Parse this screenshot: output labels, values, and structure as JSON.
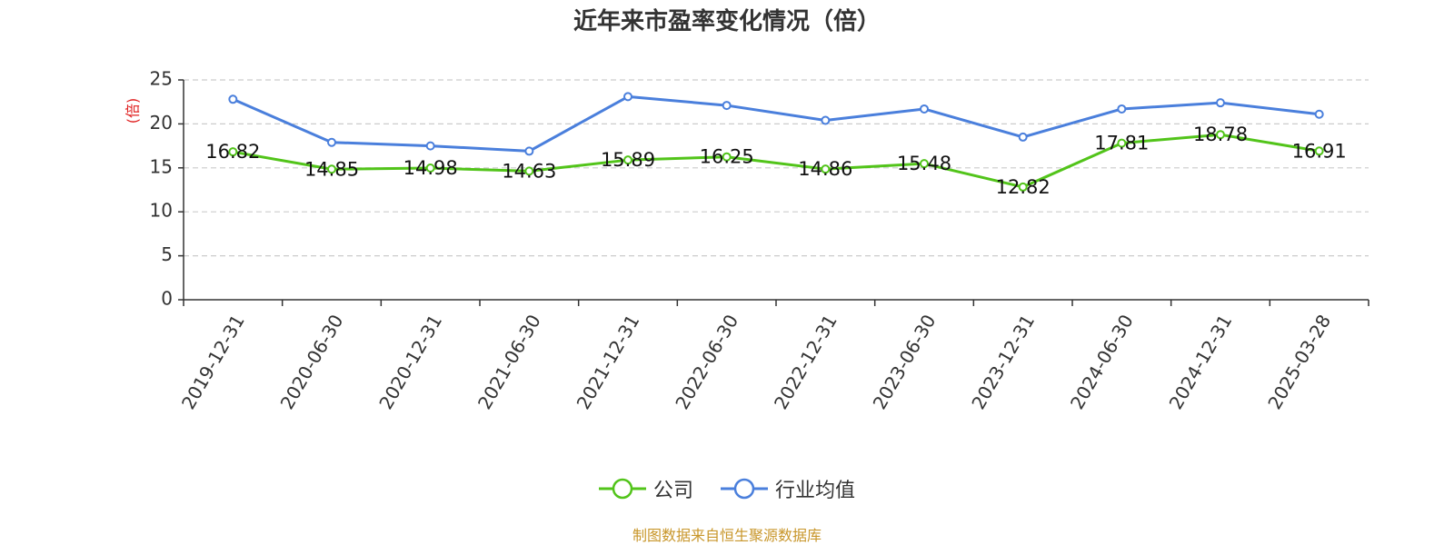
{
  "chart_data": {
    "type": "line",
    "title": "近年来市盈率变化情况（倍）",
    "ylabel": "(倍)",
    "xlabel": "",
    "ylim": [
      0,
      25
    ],
    "yticks": [
      0,
      5,
      10,
      15,
      20,
      25
    ],
    "grid": true,
    "legend_position": "bottom-center",
    "categories": [
      "2019-12-31",
      "2020-06-30",
      "2020-12-31",
      "2021-06-30",
      "2021-12-31",
      "2022-06-30",
      "2022-12-31",
      "2023-06-30",
      "2023-12-31",
      "2024-06-30",
      "2024-12-31",
      "2025-03-28"
    ],
    "series": [
      {
        "name": "公司",
        "color": "#52c41a",
        "values": [
          16.82,
          14.85,
          14.98,
          14.63,
          15.89,
          16.25,
          14.86,
          15.48,
          12.82,
          17.81,
          18.78,
          16.91
        ],
        "labels": [
          "16.82",
          "14.85",
          "14.98",
          "14.63",
          "15.89",
          "16.25",
          "14.86",
          "15.48",
          "12.82",
          "17.81",
          "18.78",
          "16.91"
        ]
      },
      {
        "name": "行业均值",
        "color": "#4a7fdc",
        "values": [
          22.8,
          17.9,
          17.5,
          16.9,
          23.1,
          22.1,
          20.4,
          21.7,
          18.5,
          21.7,
          22.4,
          21.1
        ]
      }
    ]
  },
  "source_note": "制图数据来自恒生聚源数据库"
}
